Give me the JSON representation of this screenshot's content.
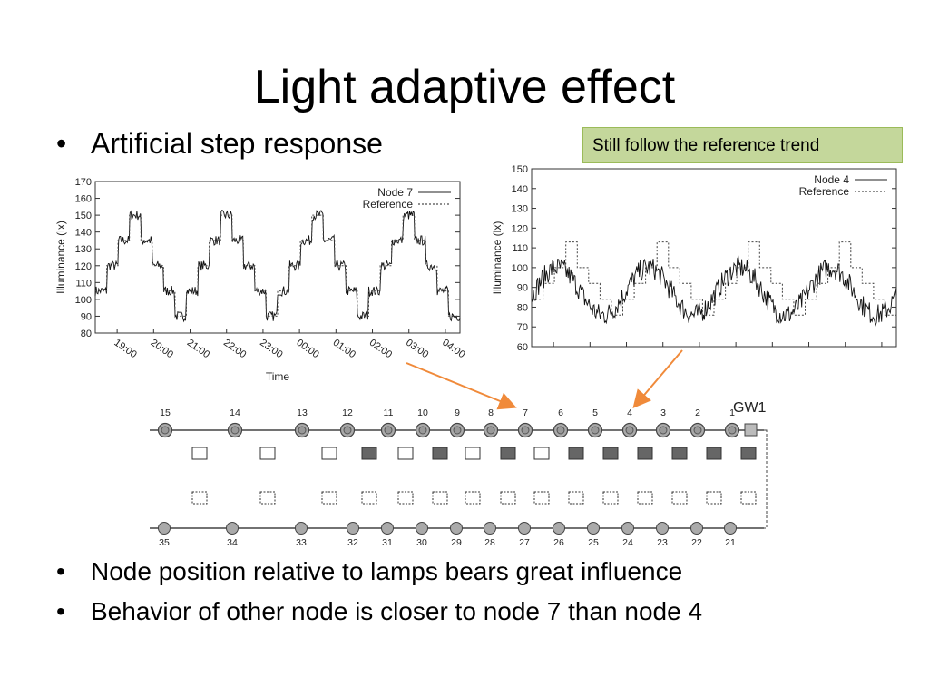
{
  "slide": {
    "title": "Light adaptive effect",
    "bullets": [
      "Artificial step response",
      "Node position relative to lamps bears great influence",
      "Behavior of other node is closer to node 7 than node 4"
    ],
    "callout": "Still follow the reference trend",
    "bullet_symbol": "•"
  },
  "chart_data": [
    {
      "type": "line",
      "xlabel": "Time",
      "ylabel": "Illuminance (lx)",
      "ylim": [
        80,
        170
      ],
      "yticks": [
        80,
        90,
        100,
        110,
        120,
        130,
        140,
        150,
        160,
        170
      ],
      "xtick_labels": [
        "19:00",
        "20:00",
        "21:00",
        "22:00",
        "23:00",
        "00:00",
        "01:00",
        "02:00",
        "03:00",
        "04:00"
      ],
      "legend_position": "top-right",
      "reference_levels": [
        90,
        105,
        120,
        135,
        150
      ],
      "series": [
        {
          "name": "Node 7",
          "style": "solid",
          "noise": 3,
          "offset": 0
        },
        {
          "name": "Reference",
          "style": "dashed",
          "noise": 0,
          "offset": 0
        }
      ]
    },
    {
      "type": "line",
      "xlabel": "",
      "ylabel": "Illuminance (lx)",
      "ylim": [
        60,
        150
      ],
      "yticks": [
        60,
        70,
        80,
        90,
        100,
        110,
        120,
        130,
        140,
        150
      ],
      "xtick_labels": [],
      "legend_position": "top-right",
      "reference_levels": [
        76,
        84,
        92,
        100,
        113
      ],
      "series": [
        {
          "name": "Node 4",
          "style": "solid",
          "noise": 7
        },
        {
          "name": "Reference",
          "style": "dashed",
          "noise": 0
        }
      ]
    }
  ],
  "diagram": {
    "gateway_label": "GW1",
    "top_nodes": [
      "15",
      "14",
      "13",
      "12",
      "11",
      "10",
      "9",
      "8",
      "7",
      "6",
      "5",
      "4",
      "3",
      "2",
      "1"
    ],
    "bottom_nodes": [
      "35",
      "34",
      "33",
      "32",
      "31",
      "30",
      "29",
      "28",
      "27",
      "26",
      "25",
      "24",
      "23",
      "22",
      "21"
    ],
    "lamp_row_states": [
      "off",
      "off",
      "off",
      "on",
      "off",
      "on",
      "off",
      "on",
      "off",
      "on",
      "on",
      "on",
      "on",
      "on",
      "on"
    ]
  }
}
